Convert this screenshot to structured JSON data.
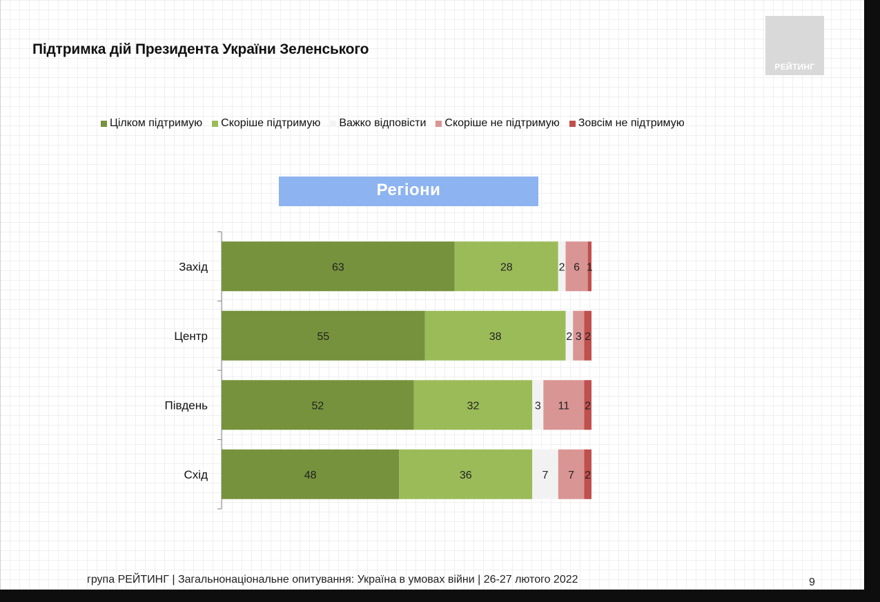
{
  "title": "Підтримка дій Президента України Зеленського",
  "logo": {
    "text": "РЕЙТИНГ"
  },
  "banner": {
    "label": "Регіони"
  },
  "footer": "група РЕЙТИНГ | Загальнонаціональне опитування: Україна в умовах війни | 26-27 лютого 2022",
  "page_number": "9",
  "chart_data": {
    "type": "bar",
    "orientation": "horizontal",
    "stacked": true,
    "title": "Регіони",
    "categories": [
      "Захід",
      "Центр",
      "Південь",
      "Схід"
    ],
    "series": [
      {
        "name": "Цілком підтримую",
        "color": "#76923c",
        "values": [
          63,
          55,
          52,
          48
        ]
      },
      {
        "name": "Скоріше підтримую",
        "color": "#9bbb59",
        "values": [
          28,
          38,
          32,
          36
        ]
      },
      {
        "name": "Важко відповісти",
        "color": "#f2f2f2",
        "values": [
          2,
          2,
          3,
          7
        ]
      },
      {
        "name": "Скоріше не підтримую",
        "color": "#d99594",
        "values": [
          6,
          3,
          11,
          7
        ]
      },
      {
        "name": "Зовсім не підтримую",
        "color": "#c0504d",
        "values": [
          1,
          2,
          2,
          2
        ]
      }
    ],
    "xlim": [
      0,
      100
    ],
    "legend_position": "top",
    "data_labels": true,
    "grid": false
  }
}
